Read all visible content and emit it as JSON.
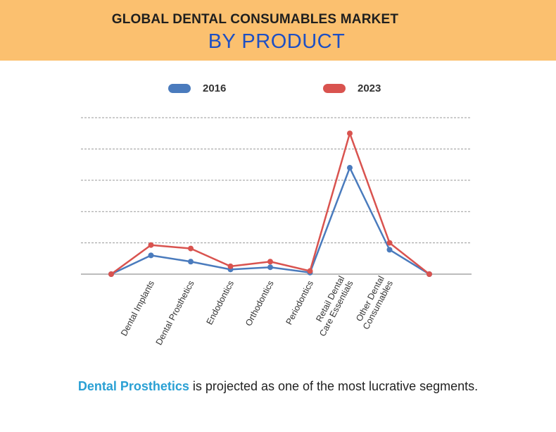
{
  "header": {
    "title_line1": "GLOBAL DENTAL CONSUMABLES MARKET",
    "title_line2": "BY PRODUCT"
  },
  "colors": {
    "header_bg": "#fbc06f",
    "series_2016": "#4a7bbd",
    "series_2023": "#d9534f",
    "highlight": "#2aa0d4"
  },
  "footer": {
    "highlight": "Dental Prosthetics",
    "rest": " is projected as one of the most lucrative segments."
  },
  "chart_data": {
    "type": "line",
    "title": "",
    "xlabel": "",
    "ylabel": "",
    "ylim": [
      0,
      5
    ],
    "grid": true,
    "legend_position": "top",
    "categories": [
      "",
      "Dental Implants",
      "Dental Prosthetics",
      "Endodontics",
      "Orthodontics",
      "Periodontics",
      "Retail Dental\nCare Essentials",
      "Other Dental\nConsumables",
      ""
    ],
    "series": [
      {
        "name": "2016",
        "color": "#4a7bbd",
        "values": [
          0.0,
          0.6,
          0.4,
          0.15,
          0.22,
          0.05,
          3.4,
          0.78,
          0.0
        ]
      },
      {
        "name": "2023",
        "color": "#d9534f",
        "values": [
          0.0,
          0.93,
          0.82,
          0.25,
          0.4,
          0.1,
          4.5,
          1.0,
          0.0
        ]
      }
    ]
  }
}
